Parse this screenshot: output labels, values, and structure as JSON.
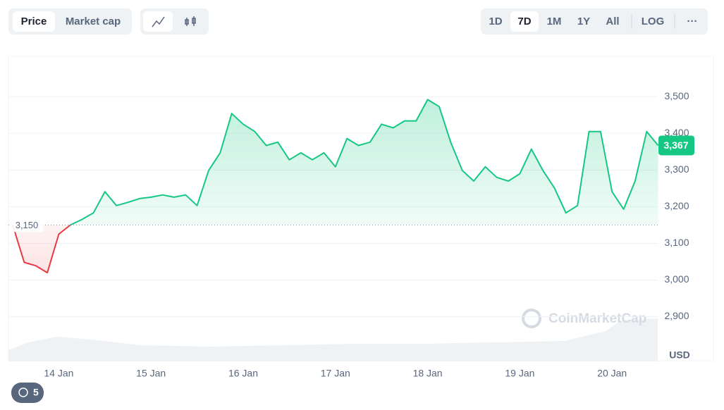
{
  "ui": {
    "tabs": [
      "Price",
      "Market cap"
    ],
    "active_tab": "Price",
    "ranges": [
      "1D",
      "7D",
      "1M",
      "1Y",
      "All"
    ],
    "active_range": "7D",
    "log": "LOG",
    "more": "···",
    "badge": "5",
    "watermark": "CoinMarketCap"
  },
  "chart_data": {
    "type": "line",
    "categories": [
      null,
      null,
      null,
      null,
      "14 Jan",
      null,
      null,
      null,
      null,
      null,
      null,
      null,
      "15 Jan",
      null,
      null,
      null,
      null,
      null,
      null,
      null,
      "16 Jan",
      null,
      null,
      null,
      null,
      null,
      null,
      null,
      "17 Jan",
      null,
      null,
      null,
      null,
      null,
      null,
      null,
      "18 Jan",
      null,
      null,
      null,
      null,
      null,
      null,
      null,
      "19 Jan",
      null,
      null,
      null,
      null,
      null,
      null,
      null,
      "20 Jan",
      null,
      null,
      null,
      null
    ],
    "series": [
      {
        "name": "Price",
        "color": "#16c784",
        "below_color": "#ea3943",
        "values": [
          3150,
          3048,
          3039,
          3020,
          3125,
          3150,
          3165,
          3183,
          3241,
          3203,
          3212,
          3222,
          3226,
          3232,
          3226,
          3232,
          3203,
          3299,
          3347,
          3454,
          3425,
          3405,
          3367,
          3376,
          3328,
          3347,
          3328,
          3347,
          3309,
          3386,
          3367,
          3376,
          3425,
          3415,
          3434,
          3434,
          3492,
          3473,
          3376,
          3299,
          3270,
          3309,
          3280,
          3270,
          3290,
          3357,
          3299,
          3251,
          3183,
          3203,
          3405,
          3405,
          3241,
          3193,
          3270,
          3405,
          3367
        ]
      }
    ],
    "baseline": 3150,
    "baseline_label": "3,150",
    "last_label": "3,367",
    "ylim": [
      2780,
      3610
    ],
    "yticks": [
      {
        "value": 2900,
        "label": "2,900"
      },
      {
        "value": 3000,
        "label": "3,000"
      },
      {
        "value": 3100,
        "label": "3,100"
      },
      {
        "value": 3200,
        "label": "3,200"
      },
      {
        "value": 3300,
        "label": "3,300"
      },
      {
        "value": 3400,
        "label": "3,400"
      },
      {
        "value": 3500,
        "label": "3,500"
      }
    ],
    "y_unit": "USD",
    "grid": true
  }
}
